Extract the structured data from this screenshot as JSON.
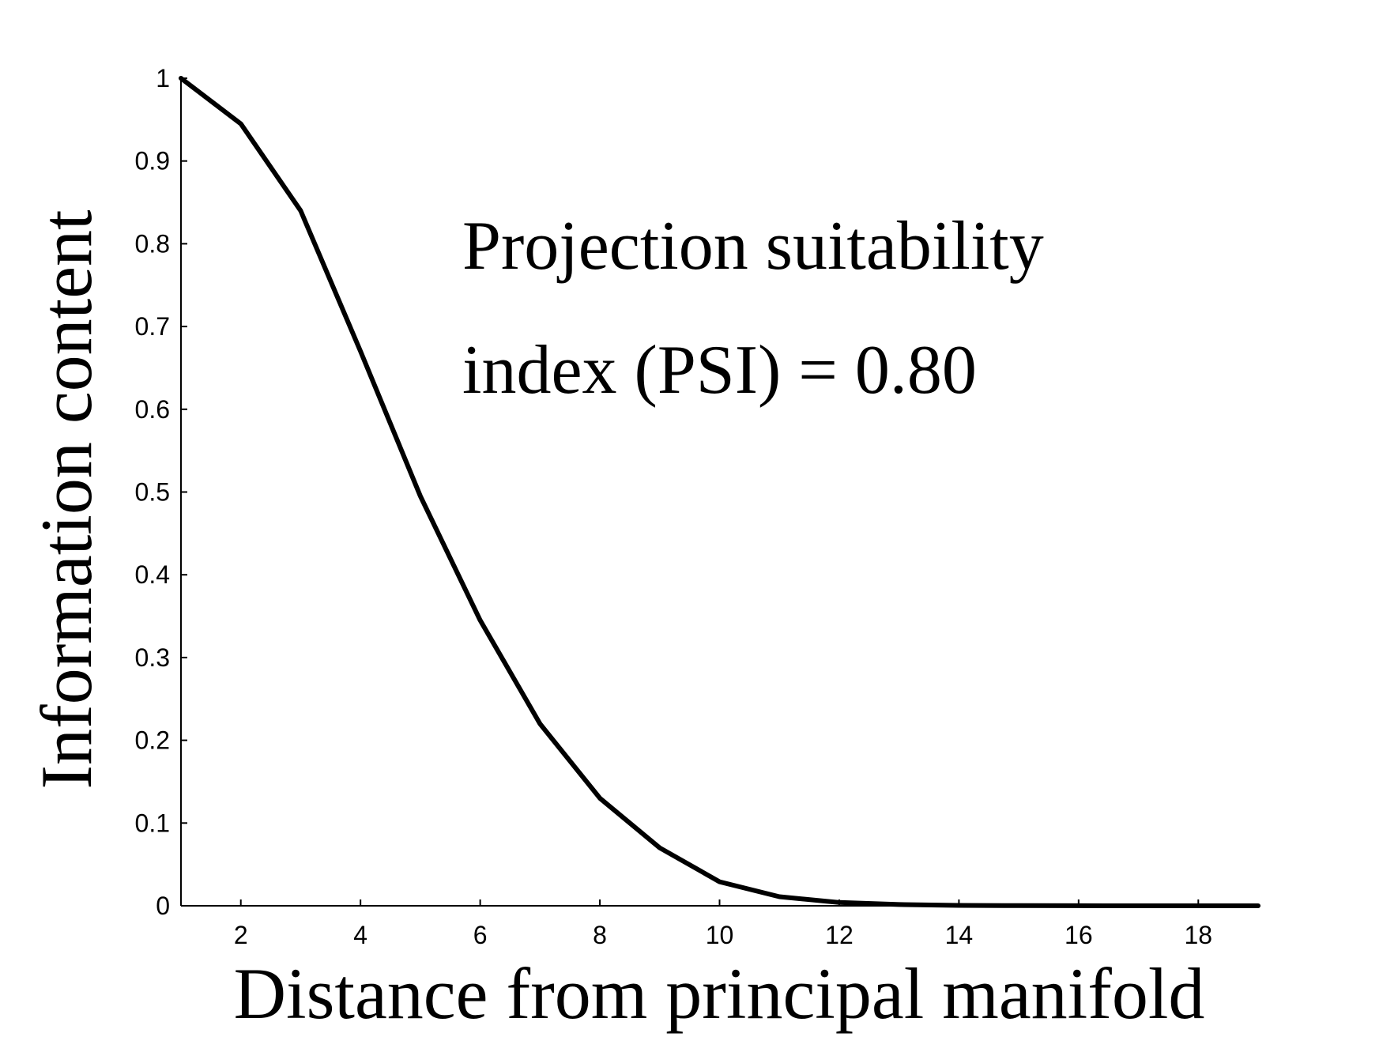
{
  "chart_data": {
    "type": "line",
    "xlabel": "Distance from principal manifold",
    "ylabel": "Information content",
    "xlim": [
      1,
      19
    ],
    "ylim": [
      0,
      1
    ],
    "x_ticks": [
      2,
      4,
      6,
      8,
      10,
      12,
      14,
      16,
      18
    ],
    "y_ticks": [
      0,
      0.1,
      0.2,
      0.3,
      0.4,
      0.5,
      0.6,
      0.7,
      0.8,
      0.9,
      1
    ],
    "grid": false,
    "legend": "none",
    "annotation_lines": [
      "Projection suitability",
      "index (PSI) = 0.80"
    ],
    "line_color": "#000000",
    "series": [
      {
        "x": [
          1,
          2,
          3,
          4,
          5,
          6,
          7,
          8,
          9,
          10,
          11,
          12,
          13,
          14,
          15,
          16,
          17,
          18,
          19
        ],
        "values": [
          1.0,
          0.945,
          0.84,
          0.67,
          0.495,
          0.345,
          0.22,
          0.13,
          0.07,
          0.029,
          0.011,
          0.004,
          0.0015,
          0.0005,
          0.0002,
          0.0001,
          0.0,
          0.0,
          0.0
        ]
      }
    ]
  }
}
